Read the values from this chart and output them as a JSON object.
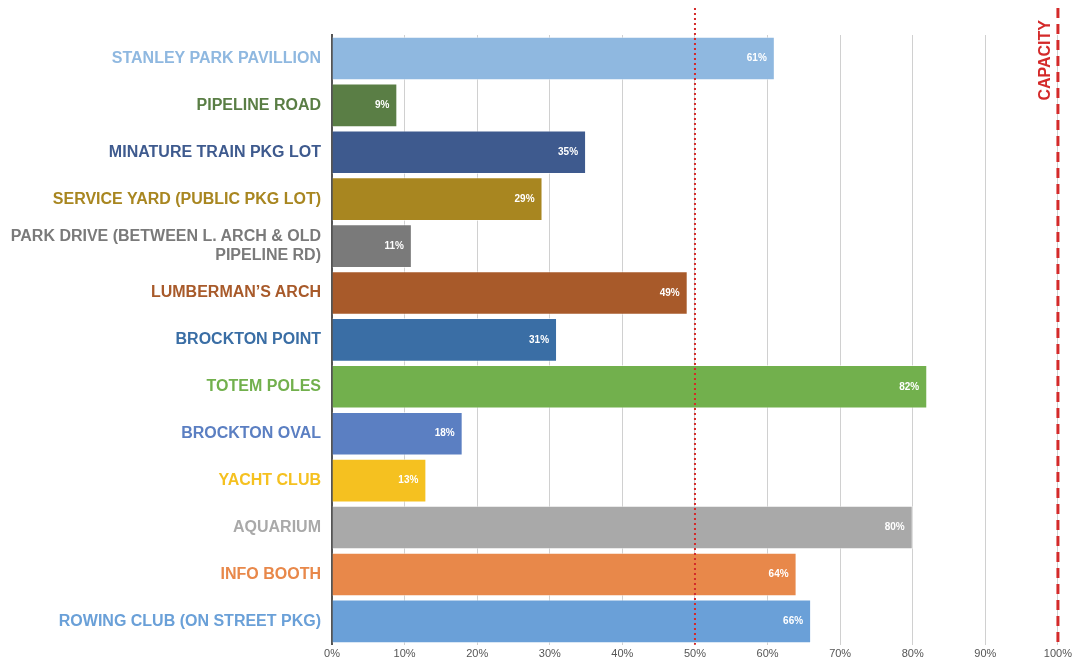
{
  "chart_data": {
    "type": "bar",
    "orientation": "horizontal",
    "categories": [
      "STANLEY PARK PAVILLION",
      "PIPELINE ROAD",
      "MINATURE TRAIN PKG LOT",
      "SERVICE YARD (PUBLIC PKG LOT)",
      "PARK DRIVE (BETWEEN L. ARCH & OLD PIPELINE RD)",
      "LUMBERMAN’S ARCH",
      "BROCKTON POINT",
      "TOTEM POLES",
      "BROCKTON OVAL",
      "YACHT CLUB",
      "AQUARIUM",
      "INFO BOOTH",
      "ROWING CLUB (ON STREET PKG)"
    ],
    "values": [
      61,
      9,
      35,
      29,
      11,
      49,
      31,
      82,
      18,
      13,
      80,
      64,
      66
    ],
    "value_labels": [
      "61%",
      "9%",
      "35%",
      "29%",
      "11%",
      "49%",
      "31%",
      "82%",
      "18%",
      "13%",
      "80%",
      "64%",
      "66%"
    ],
    "colors": [
      "#8fb8e0",
      "#5a7e45",
      "#3e5a8e",
      "#a88620",
      "#7a7a7a",
      "#a85a2a",
      "#3a6ea5",
      "#72b04d",
      "#5b7fc2",
      "#f5c120",
      "#a9a9a9",
      "#e8884a",
      "#6aa0d8"
    ],
    "xlim": [
      0,
      100
    ],
    "xticks": [
      {
        "value": 0,
        "label": "0%"
      },
      {
        "value": 10,
        "label": "10%"
      },
      {
        "value": 20,
        "label": "20%"
      },
      {
        "value": 30,
        "label": "30%"
      },
      {
        "value": 40,
        "label": "40%"
      },
      {
        "value": 50,
        "label": "50%"
      },
      {
        "value": 60,
        "label": "60%"
      },
      {
        "value": 70,
        "label": "70%"
      },
      {
        "value": 80,
        "label": "80%"
      },
      {
        "value": 90,
        "label": "90%"
      },
      {
        "value": 100,
        "label": "100%"
      }
    ],
    "grid": "x",
    "legend": false,
    "ref_lines": [
      {
        "axis": "x",
        "value": 50,
        "color": "#d42a2a",
        "line_style": "dotted"
      },
      {
        "axis": "x",
        "value": 100,
        "label": "CAPACITY",
        "color": "#d42a2a",
        "line_style": "dashed"
      }
    ]
  }
}
